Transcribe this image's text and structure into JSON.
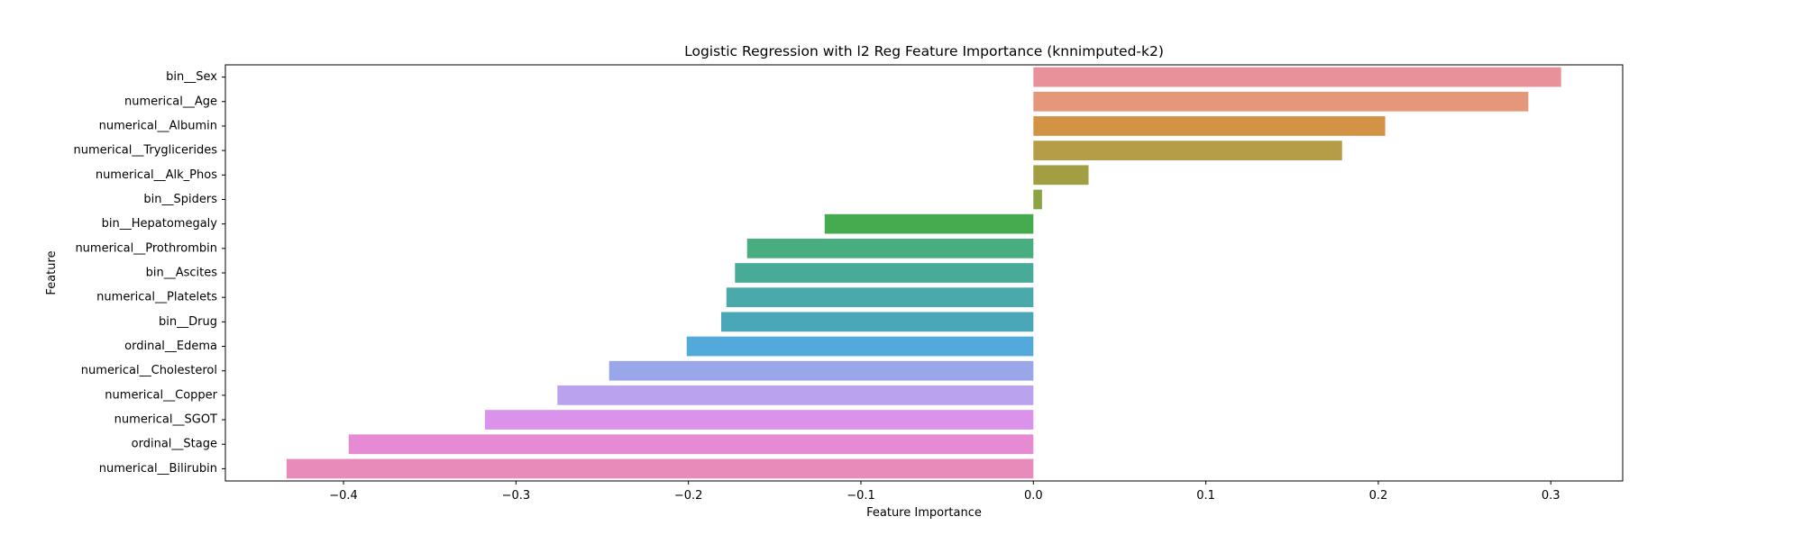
{
  "chart_data": {
    "type": "bar",
    "orientation": "horizontal",
    "title": "Logistic Regression with l2 Reg Feature Importance (knnimputed-k2)",
    "xlabel": "Feature Importance",
    "ylabel": "Feature",
    "xlim": [
      -0.4685,
      0.3417
    ],
    "xticks": [
      -0.4,
      -0.3,
      -0.2,
      -0.1,
      0.0,
      0.1,
      0.2,
      0.3
    ],
    "xtick_labels": [
      "−0.4",
      "−0.3",
      "−0.2",
      "−0.1",
      "0.0",
      "0.1",
      "0.2",
      "0.3"
    ],
    "grid": false,
    "categories": [
      "bin__Sex",
      "numerical__Age",
      "numerical__Albumin",
      "numerical__Tryglicerides",
      "numerical__Alk_Phos",
      "bin__Spiders",
      "bin__Hepatomegaly",
      "numerical__Prothrombin",
      "bin__Ascites",
      "numerical__Platelets",
      "bin__Drug",
      "ordinal__Edema",
      "numerical__Cholesterol",
      "numerical__Copper",
      "numerical__SGOT",
      "ordinal__Stage",
      "numerical__Bilirubin"
    ],
    "values": [
      0.306,
      0.287,
      0.204,
      0.179,
      0.032,
      0.005,
      -0.121,
      -0.166,
      -0.173,
      -0.178,
      -0.181,
      -0.201,
      -0.246,
      -0.276,
      -0.318,
      -0.397,
      -0.433
    ],
    "colors": [
      "#e8919b",
      "#e5977a",
      "#d39345",
      "#b59c46",
      "#a19e43",
      "#8aa443",
      "#46aa4e",
      "#48ae7f",
      "#48ab97",
      "#4aaaab",
      "#4aa7b7",
      "#53a9d9",
      "#99a6e9",
      "#bba2ee",
      "#db92eb",
      "#e78ad4",
      "#e88bbb"
    ]
  }
}
